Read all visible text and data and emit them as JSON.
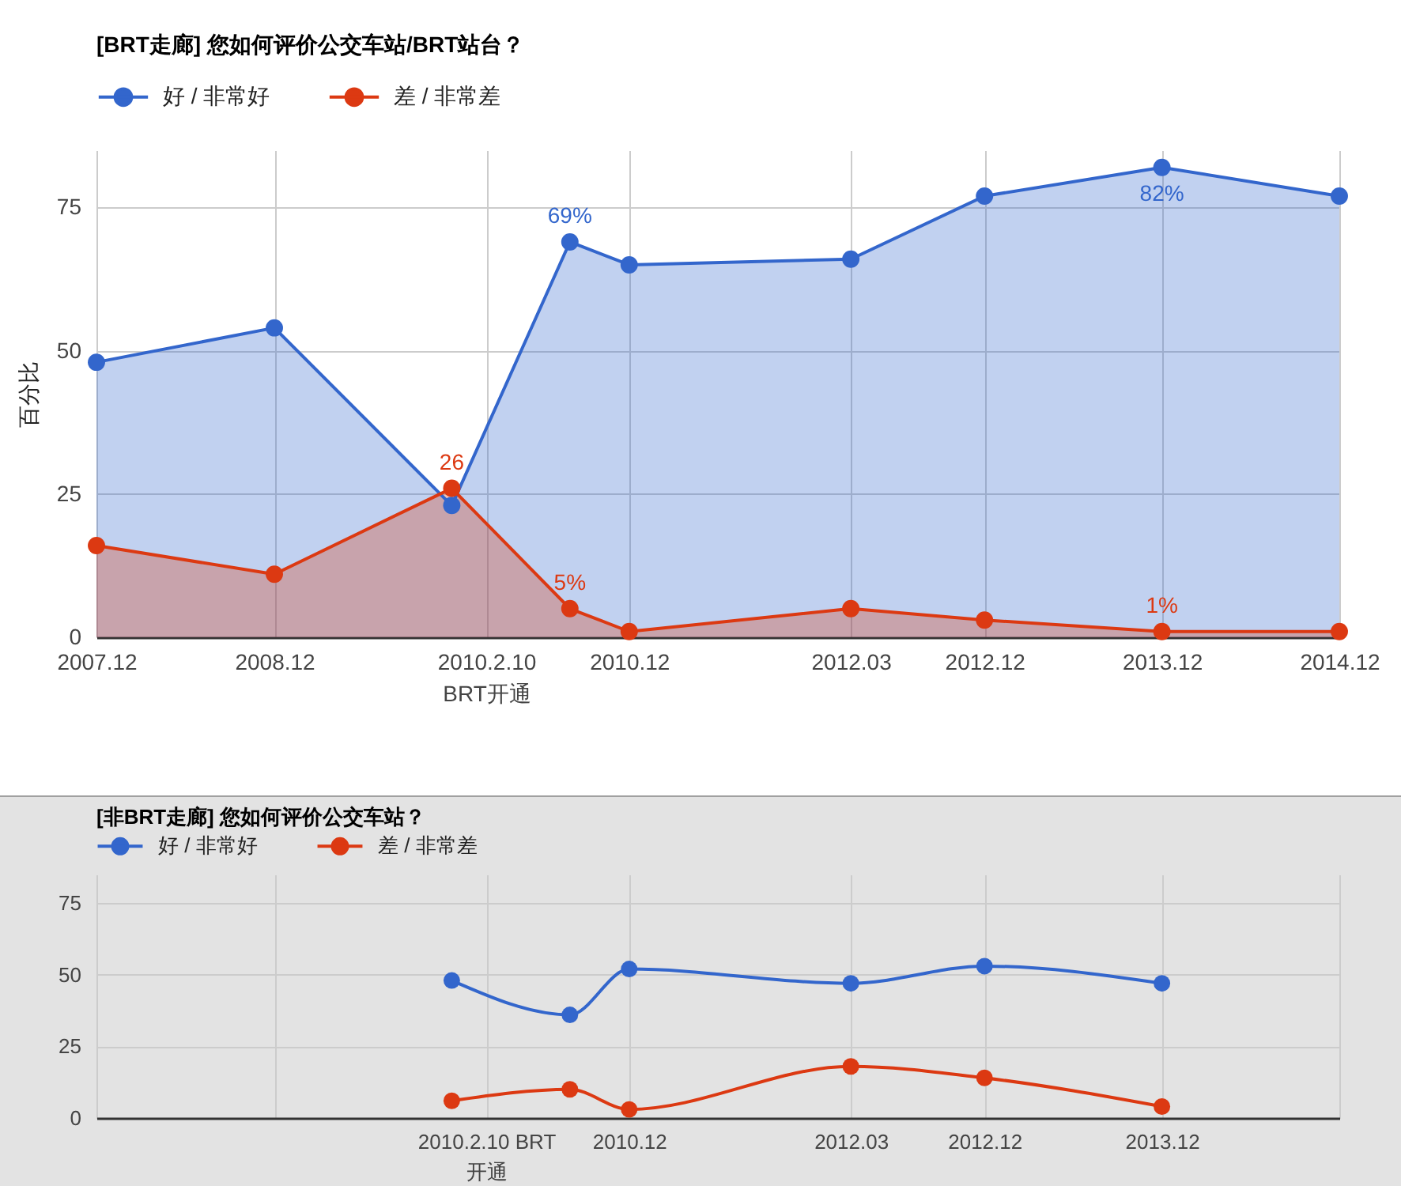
{
  "chart_data": [
    {
      "type": "area",
      "title": "[BRT走廊] 您如何评价公交车站/BRT站台？",
      "ylabel": "百分比",
      "x": [
        "2007-12",
        "2008-12",
        "2009-12",
        "2010-08",
        "2010-12",
        "2012-03",
        "2012-12",
        "2013-12",
        "2014-12"
      ],
      "series": [
        {
          "name": "好 / 非常好",
          "color": "#3366cc",
          "values": [
            48,
            54,
            23,
            69,
            65,
            66,
            77,
            82,
            77
          ],
          "value_labels": [
            null,
            null,
            null,
            "69%",
            null,
            null,
            null,
            "82%",
            null
          ]
        },
        {
          "name": "差 / 非常差",
          "color": "#dc3912",
          "values": [
            16,
            11,
            26,
            5,
            1,
            5,
            3,
            1,
            1
          ],
          "value_labels": [
            null,
            null,
            "26",
            "5%",
            null,
            null,
            null,
            "1%",
            null
          ]
        }
      ],
      "xlim": [
        "2007-12",
        "2014-12"
      ],
      "xticks": [
        {
          "value": "2007-12",
          "label": "2007.12"
        },
        {
          "value": "2008-12",
          "label": "2008.12"
        },
        {
          "value": "2010-02-10",
          "label": "2010.2.10\nBRT开通"
        },
        {
          "value": "2010-12",
          "label": "2010.12"
        },
        {
          "value": "2012-03",
          "label": "2012.03"
        },
        {
          "value": "2012-12",
          "label": "2012.12"
        },
        {
          "value": "2013-12",
          "label": "2013.12"
        },
        {
          "value": "2014-12",
          "label": "2014.12"
        }
      ],
      "ylim": [
        0,
        85
      ],
      "yticks": [
        0,
        25,
        50,
        75
      ],
      "grid": true,
      "legend": "top left",
      "marker": "circle",
      "line_style": "solid"
    },
    {
      "type": "line",
      "title": "[非BRT走廊] 您如何评价公交车站？",
      "x": [
        "2009-12",
        "2010-08",
        "2010-12",
        "2012-03",
        "2012-12",
        "2013-12"
      ],
      "series": [
        {
          "name": "好 / 非常好",
          "color": "#3366cc",
          "values": [
            48,
            36,
            52,
            47,
            53,
            47
          ]
        },
        {
          "name": "差 / 非常差",
          "color": "#dc3912",
          "values": [
            6,
            10,
            3,
            18,
            14,
            4
          ]
        }
      ],
      "xlim": [
        "2007-12",
        "2014-12"
      ],
      "xticks": [
        {
          "value": "2007-12",
          "label": null
        },
        {
          "value": "2008-12",
          "label": null
        },
        {
          "value": "2010-02-10",
          "label": "2010.2.10 BRT\n开通"
        },
        {
          "value": "2010-12",
          "label": "2010.12"
        },
        {
          "value": "2012-03",
          "label": "2012.03"
        },
        {
          "value": "2012-12",
          "label": "2012.12"
        },
        {
          "value": "2013-12",
          "label": "2013.12"
        },
        {
          "value": "2014-12",
          "label": null
        }
      ],
      "ylim": [
        0,
        85
      ],
      "yticks": [
        0,
        25,
        50,
        75
      ],
      "grid": true,
      "legend": "top left",
      "marker": "circle",
      "line_style": "solid"
    }
  ]
}
